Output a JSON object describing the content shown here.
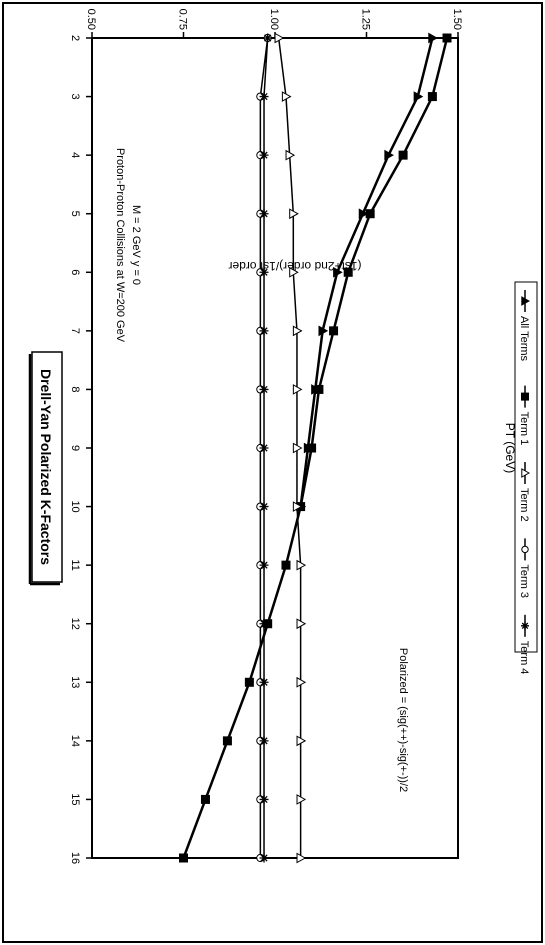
{
  "chart_data": {
    "type": "line",
    "title": "Drell-Yan Polarized K-Factors",
    "annotations": [
      "Proton-Proton Collisions at W=200 GeV",
      "M = 2 GeV  y = 0",
      "Polarized = (sig(++)-sig(+-))/2"
    ],
    "xlabel": "PT (GeV)",
    "ylabel": "(1st+2nd order)/1st order",
    "xlim": [
      2,
      16
    ],
    "ylim": [
      0.5,
      1.5
    ],
    "xticks": [
      "2",
      "3",
      "4",
      "5",
      "6",
      "7",
      "8",
      "9",
      "10",
      "11",
      "12",
      "13",
      "14",
      "15",
      "16"
    ],
    "yticks": [
      "0.50",
      "0.75",
      "1.00",
      "1.25",
      "1.50"
    ],
    "x": [
      2,
      3,
      4,
      5,
      6,
      7,
      8,
      9,
      10,
      11,
      12,
      13,
      14,
      15,
      16
    ],
    "legend_position": "bottom",
    "series": [
      {
        "name": "All Terms",
        "marker": "triangle-filled",
        "values": [
          1.43,
          1.39,
          1.31,
          1.24,
          1.17,
          1.13,
          1.11,
          1.09,
          1.07,
          null,
          null,
          null,
          null,
          null,
          null
        ]
      },
      {
        "name": "Term 1",
        "marker": "square-filled",
        "values": [
          1.47,
          1.43,
          1.35,
          1.26,
          1.2,
          1.16,
          1.12,
          1.1,
          1.07,
          1.03,
          0.98,
          0.93,
          0.87,
          0.81,
          0.75
        ]
      },
      {
        "name": "Term 2",
        "marker": "triangle-open",
        "values": [
          1.01,
          1.03,
          1.04,
          1.05,
          1.05,
          1.06,
          1.06,
          1.06,
          1.06,
          1.07,
          1.07,
          1.07,
          1.07,
          1.07,
          1.07
        ]
      },
      {
        "name": "Term 3",
        "marker": "circle-open",
        "values": [
          0.98,
          0.96,
          0.96,
          0.96,
          0.96,
          0.96,
          0.96,
          0.96,
          0.96,
          0.96,
          0.96,
          0.96,
          0.96,
          0.96,
          0.96
        ]
      },
      {
        "name": "Term 4",
        "marker": "star",
        "values": [
          0.98,
          0.97,
          0.97,
          0.97,
          0.97,
          0.97,
          0.97,
          0.97,
          0.97,
          0.97,
          0.97,
          0.97,
          0.97,
          0.97,
          0.97
        ]
      }
    ]
  }
}
